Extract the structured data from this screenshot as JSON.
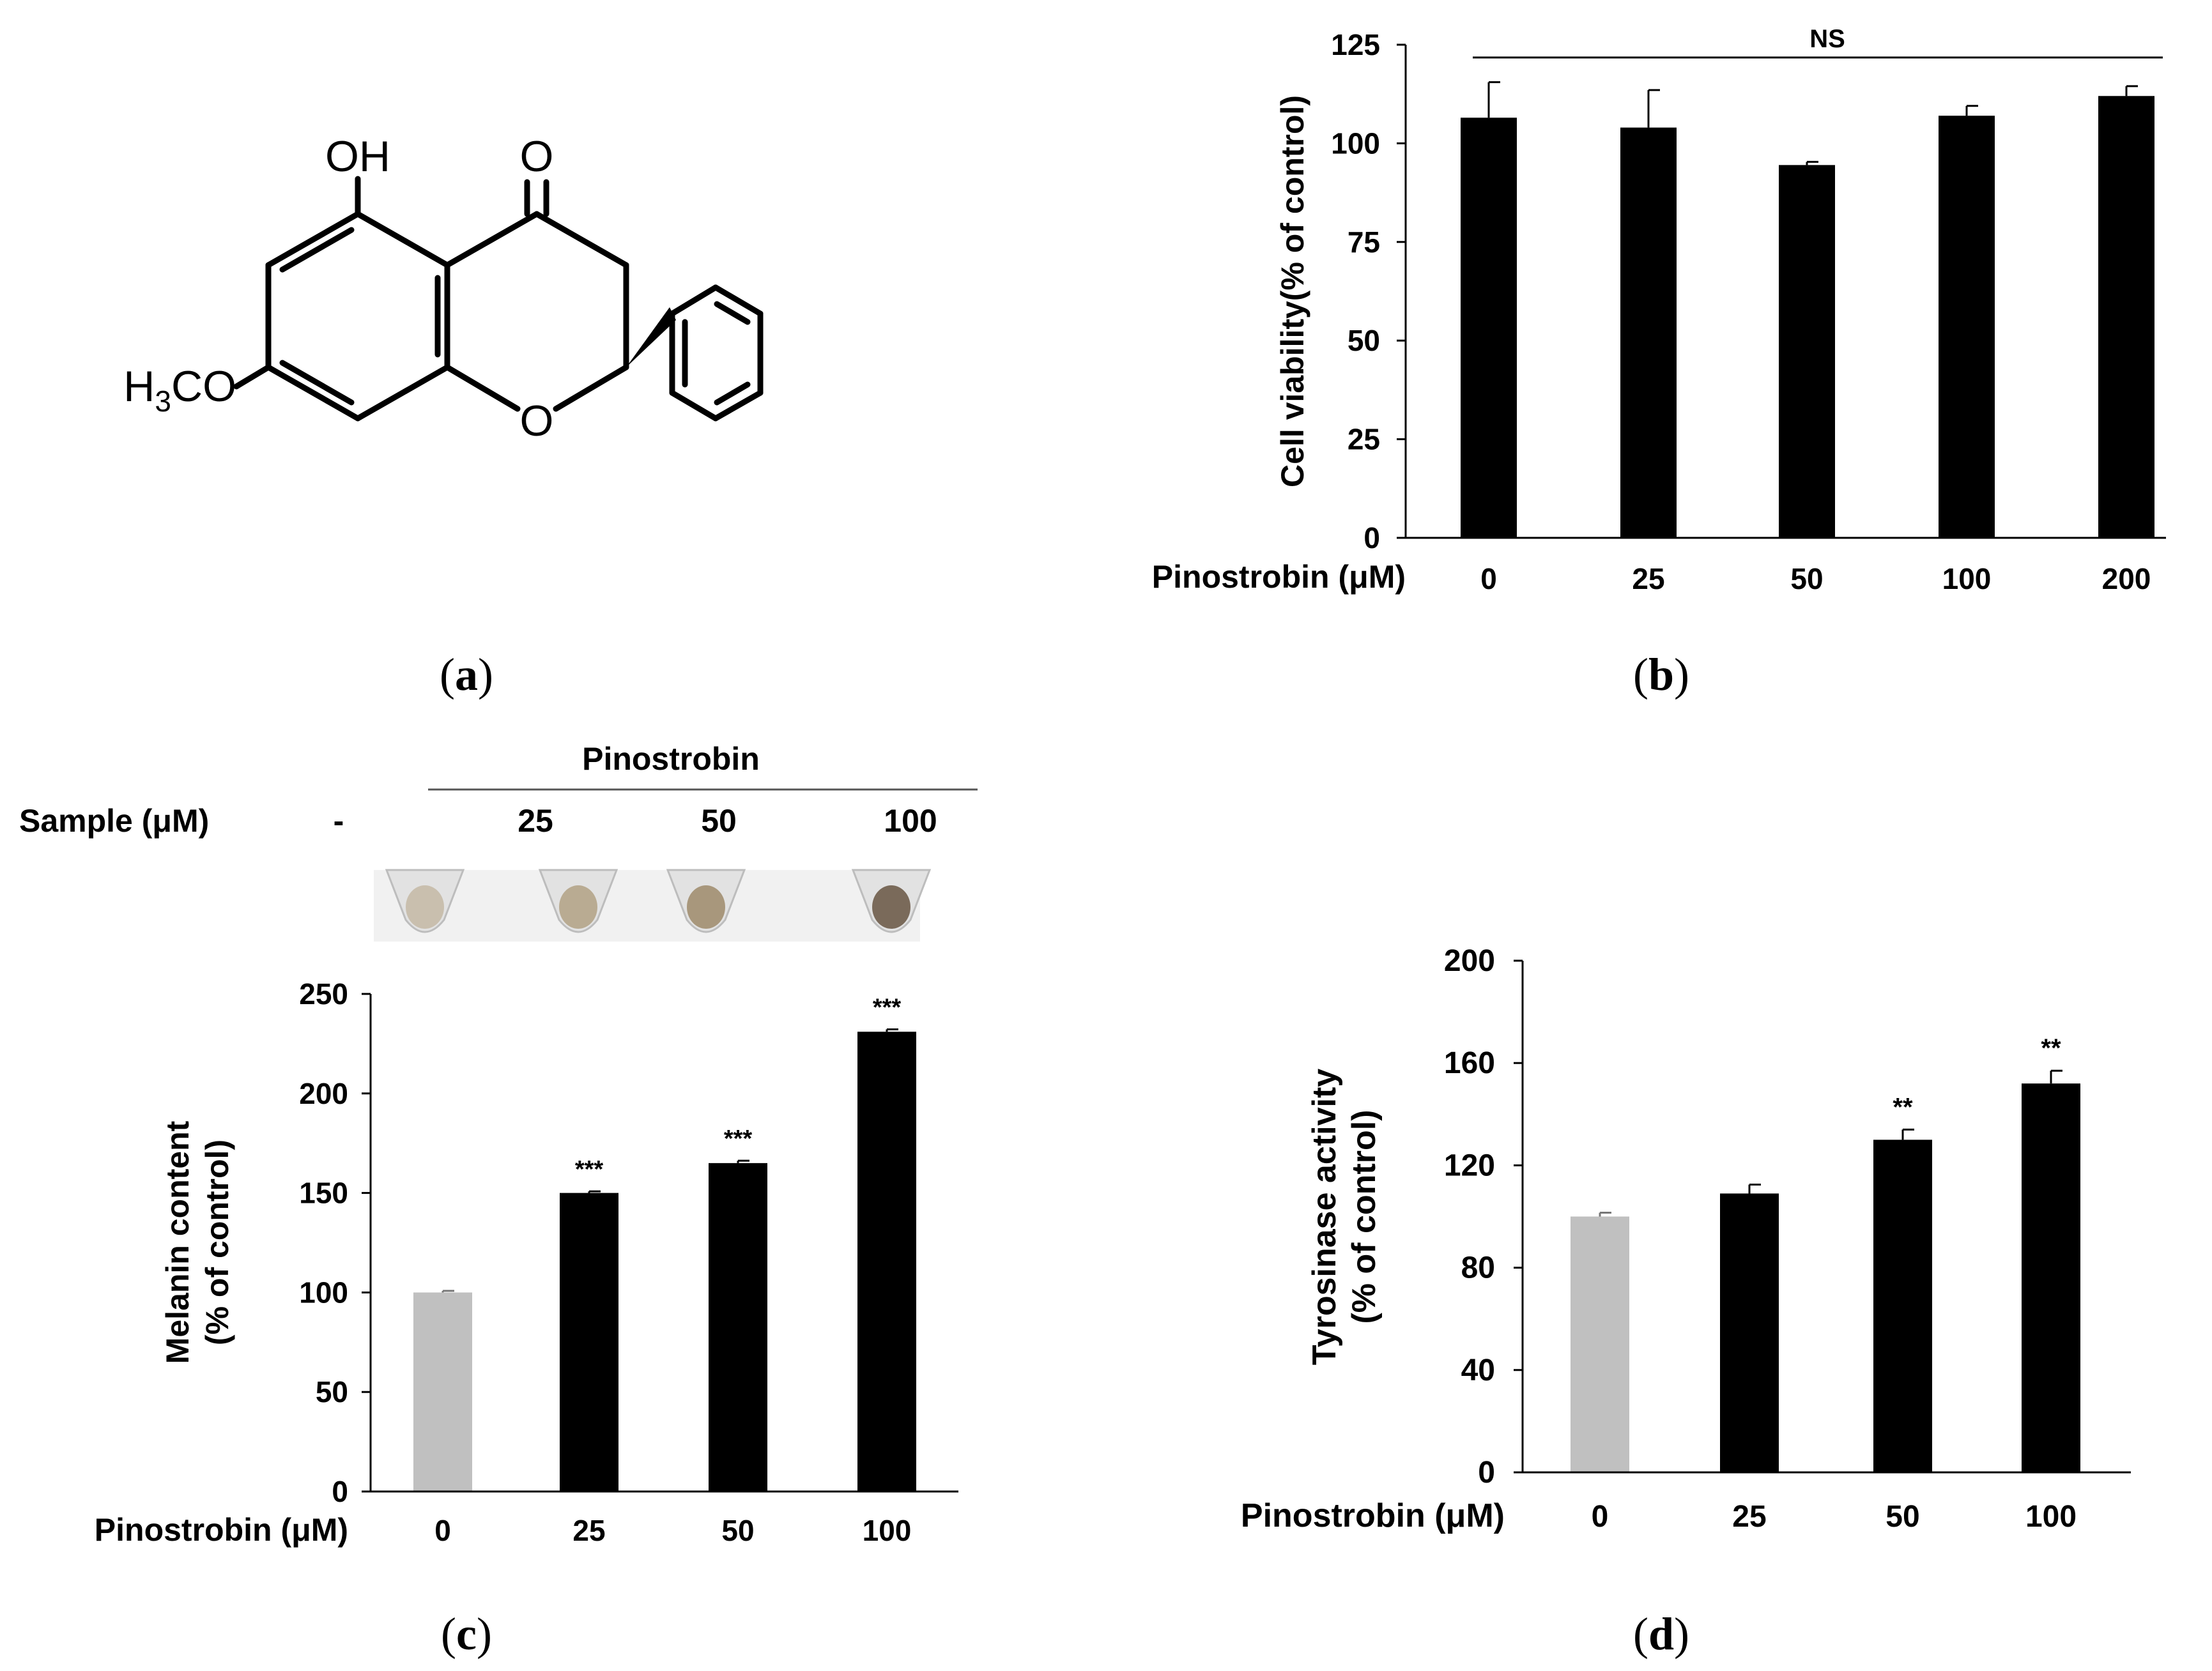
{
  "structure": {
    "labels": {
      "oh": "OH",
      "o_keto": "O",
      "o_ring": "O",
      "h": "H",
      "sub3": "3",
      "co": "CO"
    }
  },
  "panels": {
    "a": {
      "label": "a"
    },
    "b": {
      "label": "b"
    },
    "c": {
      "label": "c"
    },
    "d": {
      "label": "d"
    }
  },
  "photo": {
    "group_label": "Pinostrobin",
    "sample_label": "Sample (μM)",
    "columns": [
      "-",
      "25",
      "50",
      "100"
    ],
    "pellet_colors": [
      "#c9bfae",
      "#b9ab92",
      "#a8977c",
      "#7a6a5a"
    ]
  },
  "chart_data": [
    {
      "id": "b",
      "type": "bar",
      "xlabel": "Pinostrobin (μM)",
      "ylabel": "Cell viability(% of control)",
      "categories": [
        "0",
        "25",
        "50",
        "100",
        "200"
      ],
      "values": [
        106.5,
        104,
        94.5,
        107,
        112
      ],
      "errors": [
        9,
        9.5,
        0.8,
        2.5,
        2.5
      ],
      "colors": [
        "#000000",
        "#000000",
        "#000000",
        "#000000",
        "#000000"
      ],
      "annotations": [
        "",
        "",
        "",
        "",
        ""
      ],
      "significance": "NS",
      "ylim": [
        0,
        125
      ],
      "yticks": [
        "0",
        "25",
        "50",
        "75",
        "100",
        "125"
      ]
    },
    {
      "id": "c",
      "type": "bar",
      "xlabel": "Pinostrobin (μM)",
      "ylabel": [
        "Melanin content",
        "(% of control)"
      ],
      "categories": [
        "0",
        "25",
        "50",
        "100"
      ],
      "values": [
        100,
        150,
        165,
        231
      ],
      "errors": [
        0.8,
        0.8,
        1.2,
        1.2
      ],
      "colors": [
        "#c0c0c0",
        "#000000",
        "#000000",
        "#000000"
      ],
      "annotations": [
        "",
        "***",
        "***",
        "***"
      ],
      "ylim": [
        0,
        250
      ],
      "yticks": [
        "0",
        "50",
        "100",
        "150",
        "200",
        "250"
      ]
    },
    {
      "id": "d",
      "type": "bar",
      "xlabel": "Pinostrobin (μM)",
      "ylabel": [
        "Tyrosinase activity",
        "(% of control)"
      ],
      "categories": [
        "0",
        "25",
        "50",
        "100"
      ],
      "values": [
        100,
        109,
        130,
        152
      ],
      "errors": [
        1.5,
        3.5,
        4,
        5
      ],
      "colors": [
        "#c0c0c0",
        "#000000",
        "#000000",
        "#000000"
      ],
      "annotations": [
        "",
        "",
        "**",
        "**"
      ],
      "ylim": [
        0,
        200
      ],
      "yticks": [
        "0",
        "40",
        "80",
        "120",
        "160",
        "200"
      ]
    }
  ]
}
